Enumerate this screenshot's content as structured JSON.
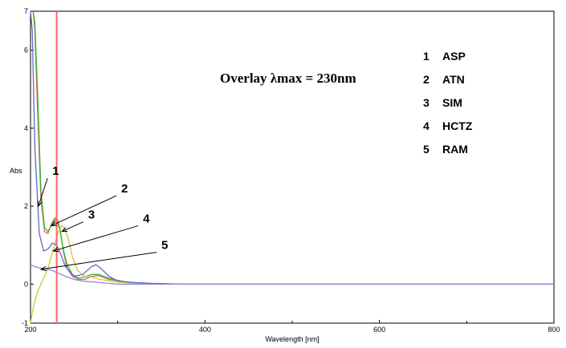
{
  "chart_data": {
    "type": "line",
    "title": "Overlay λmax = 230nm",
    "xlabel": "Wavelength [nm]",
    "ylabel": "Abs",
    "xlim": [
      200,
      800
    ],
    "ylim": [
      -1,
      7
    ],
    "x_ticks": [
      {
        "value": 200,
        "label": "200"
      },
      {
        "value": 400,
        "label": "400"
      },
      {
        "value": 600,
        "label": "600"
      },
      {
        "value": 800,
        "label": "800"
      }
    ],
    "y_ticks": [
      {
        "value": -1,
        "label": "-1"
      },
      {
        "value": 0,
        "label": "0"
      },
      {
        "value": 2,
        "label": "2"
      },
      {
        "value": 4,
        "label": "4"
      },
      {
        "value": 6,
        "label": "6"
      },
      {
        "value": 7,
        "label": "7"
      }
    ],
    "marker_line": {
      "x": 230,
      "color": "#ff6666"
    },
    "legend": {
      "position": "top-right",
      "items": [
        {
          "num": "1",
          "name": "ASP"
        },
        {
          "num": "2",
          "name": "ATN"
        },
        {
          "num": "3",
          "name": "SIM"
        },
        {
          "num": "4",
          "name": "HCTZ"
        },
        {
          "num": "5",
          "name": "RAM"
        }
      ]
    },
    "series": [
      {
        "color": "#e06060",
        "x": [
          203,
          205,
          208,
          212,
          216,
          220,
          224,
          228,
          231,
          234,
          238,
          242,
          248,
          255,
          262,
          270,
          278,
          290,
          310,
          330,
          360,
          800
        ],
        "values": [
          7,
          6.5,
          4.5,
          2.2,
          1.35,
          1.3,
          1.55,
          1.7,
          1.65,
          1.4,
          0.8,
          0.4,
          0.2,
          0.12,
          0.12,
          0.2,
          0.22,
          0.12,
          0.05,
          0.02,
          0.0,
          0.0
        ]
      },
      {
        "color": "#33bb33",
        "x": [
          203,
          205,
          208,
          212,
          216,
          220,
          224,
          228,
          231,
          234,
          238,
          242,
          248,
          255,
          262,
          270,
          278,
          290,
          310,
          330,
          360,
          800
        ],
        "values": [
          7,
          6.7,
          5,
          2.4,
          1.45,
          1.35,
          1.5,
          1.65,
          1.6,
          1.35,
          0.85,
          0.5,
          0.25,
          0.15,
          0.18,
          0.25,
          0.25,
          0.15,
          0.05,
          0.02,
          0.0,
          0.0
        ]
      },
      {
        "color": "#cccc33",
        "x": [
          200,
          203,
          208,
          214,
          220,
          226,
          232,
          236,
          240,
          244,
          248,
          254,
          262,
          270,
          280,
          300,
          330,
          800
        ],
        "values": [
          -1,
          -0.6,
          -0.2,
          0.1,
          0.4,
          0.9,
          1.35,
          1.5,
          1.4,
          1.1,
          0.7,
          0.35,
          0.2,
          0.18,
          0.12,
          0.05,
          0.0,
          0.0
        ]
      },
      {
        "color": "#6666cc",
        "x": [
          200,
          202,
          205,
          210,
          215,
          220,
          225,
          230,
          235,
          240,
          250,
          260,
          270,
          275,
          280,
          290,
          300,
          320,
          340,
          360,
          370,
          800
        ],
        "values": [
          7,
          6.5,
          3.5,
          1.3,
          0.85,
          0.9,
          1.05,
          1.0,
          0.75,
          0.45,
          0.2,
          0.25,
          0.45,
          0.5,
          0.42,
          0.2,
          0.08,
          0.04,
          0.02,
          0.01,
          0.0,
          0.0
        ]
      },
      {
        "color": "#8888dd",
        "x": [
          200,
          205,
          210,
          215,
          220,
          225,
          230,
          235,
          240,
          250,
          260,
          270,
          280,
          290,
          300,
          800
        ],
        "values": [
          0.5,
          0.45,
          0.42,
          0.4,
          0.38,
          0.35,
          0.3,
          0.25,
          0.2,
          0.12,
          0.08,
          0.06,
          0.04,
          0.02,
          0.0,
          0.0
        ]
      }
    ],
    "callouts": [
      {
        "label": "1",
        "target": [
          209,
          2.0
        ],
        "label_pos": [
          225,
          2.8
        ]
      },
      {
        "label": "2",
        "target": [
          224,
          1.5
        ],
        "label_pos": [
          304,
          2.35
        ]
      },
      {
        "label": "3",
        "target": [
          236,
          1.35
        ],
        "label_pos": [
          266,
          1.68
        ]
      },
      {
        "label": "4",
        "target": [
          226,
          0.85
        ],
        "label_pos": [
          329,
          1.58
        ]
      },
      {
        "label": "5",
        "target": [
          212,
          0.38
        ],
        "label_pos": [
          350,
          0.9
        ]
      }
    ],
    "grid": false
  }
}
